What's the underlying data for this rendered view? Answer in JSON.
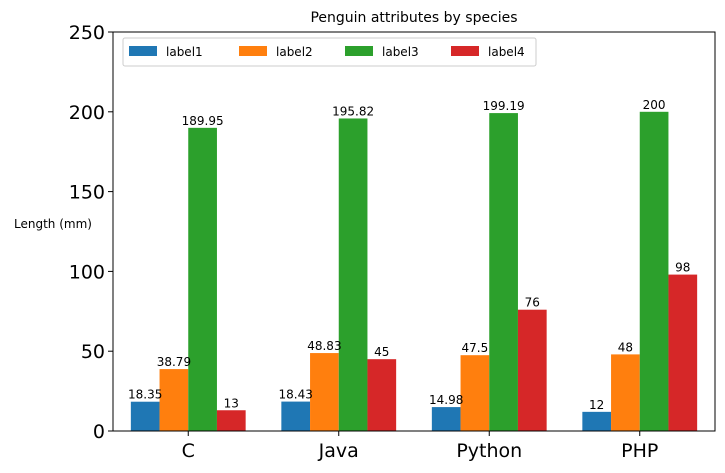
{
  "chart_data": {
    "type": "bar",
    "title": "Penguin attributes by species",
    "xlabel": "",
    "ylabel": "Length (mm)",
    "categories": [
      "C",
      "Java",
      "Python",
      "PHP"
    ],
    "series": [
      {
        "name": "label1",
        "values": [
          18.35,
          18.43,
          14.98,
          12
        ],
        "labels": [
          "18.35",
          "18.43",
          "14.98",
          "12"
        ]
      },
      {
        "name": "label2",
        "values": [
          38.79,
          48.83,
          47.5,
          48
        ],
        "labels": [
          "38.79",
          "48.83",
          "47.5",
          "48"
        ]
      },
      {
        "name": "label3",
        "values": [
          189.95,
          195.82,
          199.19,
          200
        ],
        "labels": [
          "189.95",
          "195.82",
          "199.19",
          "200"
        ]
      },
      {
        "name": "label4",
        "values": [
          13,
          45,
          76,
          98
        ],
        "labels": [
          "13",
          "45",
          "76",
          "98"
        ]
      }
    ],
    "ylim": [
      0,
      250
    ],
    "yticks": [
      "0",
      "50",
      "100",
      "150",
      "200",
      "250"
    ],
    "ytick_values": [
      0,
      50,
      100,
      150,
      200,
      250
    ],
    "grid": false,
    "legend_position": "upper-left",
    "colors": [
      "#1f77b4",
      "#ff7f0e",
      "#2ca02c",
      "#d62728"
    ]
  }
}
